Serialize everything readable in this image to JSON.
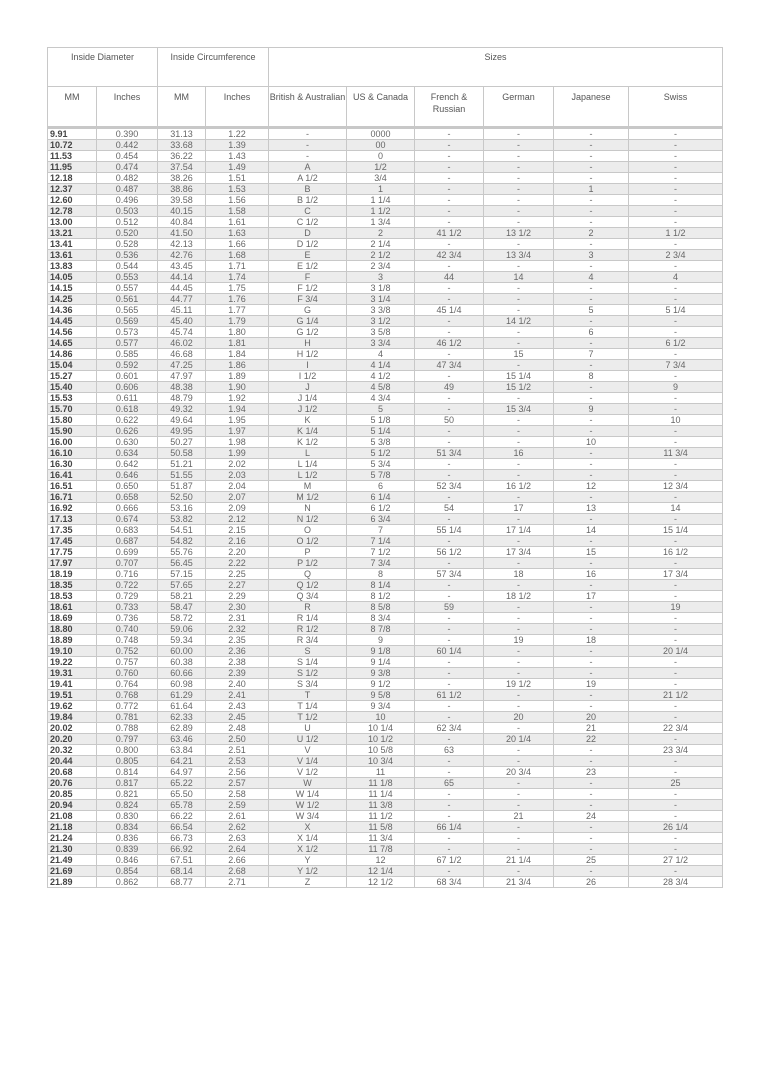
{
  "header": {
    "groups": [
      "Inside Diameter",
      "Inside Circumference",
      "Sizes"
    ],
    "columns": [
      "MM",
      "Inches",
      "MM",
      "Inches",
      "British & Australian",
      "US & Canada",
      "French & Russian",
      "German",
      "Japanese",
      "Swiss"
    ]
  },
  "rows": [
    [
      "9.91",
      "0.390",
      "31.13",
      "1.22",
      "-",
      "0000",
      "-",
      "-",
      "-",
      "-"
    ],
    [
      "10.72",
      "0.442",
      "33.68",
      "1.39",
      "-",
      "00",
      "-",
      "-",
      "-",
      "-"
    ],
    [
      "11.53",
      "0.454",
      "36.22",
      "1.43",
      "-",
      "0",
      "-",
      "-",
      "-",
      "-"
    ],
    [
      "11.95",
      "0.474",
      "37.54",
      "1.49",
      "A",
      "1/2",
      "-",
      "-",
      "-",
      "-"
    ],
    [
      "12.18",
      "0.482",
      "38.26",
      "1.51",
      "A 1/2",
      "3/4",
      "-",
      "-",
      "-",
      "-"
    ],
    [
      "12.37",
      "0.487",
      "38.86",
      "1.53",
      "B",
      "1",
      "-",
      "-",
      "1",
      "-"
    ],
    [
      "12.60",
      "0.496",
      "39.58",
      "1.56",
      "B 1/2",
      "1 1/4",
      "-",
      "-",
      "-",
      "-"
    ],
    [
      "12.78",
      "0.503",
      "40.15",
      "1.58",
      "C",
      "1 1/2",
      "-",
      "-",
      "-",
      "-"
    ],
    [
      "13.00",
      "0.512",
      "40.84",
      "1.61",
      "C 1/2",
      "1 3/4",
      "-",
      "-",
      "-",
      "-"
    ],
    [
      "13.21",
      "0.520",
      "41.50",
      "1.63",
      "D",
      "2",
      "41 1/2",
      "13 1/2",
      "2",
      "1 1/2"
    ],
    [
      "13.41",
      "0.528",
      "42.13",
      "1.66",
      "D 1/2",
      "2 1/4",
      "-",
      "-",
      "-",
      "-"
    ],
    [
      "13.61",
      "0.536",
      "42.76",
      "1.68",
      "E",
      "2 1/2",
      "42 3/4",
      "13 3/4",
      "3",
      "2 3/4"
    ],
    [
      "13.83",
      "0.544",
      "43.45",
      "1.71",
      "E 1/2",
      "2 3/4",
      "-",
      "-",
      "-",
      "-"
    ],
    [
      "14.05",
      "0.553",
      "44.14",
      "1.74",
      "F",
      "3",
      "44",
      "14",
      "4",
      "4"
    ],
    [
      "14.15",
      "0.557",
      "44.45",
      "1.75",
      "F 1/2",
      "3 1/8",
      "-",
      "-",
      "-",
      "-"
    ],
    [
      "14.25",
      "0.561",
      "44.77",
      "1.76",
      "F 3/4",
      "3 1/4",
      "-",
      "-",
      "-",
      "-"
    ],
    [
      "14.36",
      "0.565",
      "45.11",
      "1.77",
      "G",
      "3 3/8",
      "45 1/4",
      "-",
      "5",
      "5 1/4"
    ],
    [
      "14.45",
      "0.569",
      "45.40",
      "1.79",
      "G 1/4",
      "3 1/2",
      "-",
      "14 1/2",
      "-",
      "-"
    ],
    [
      "14.56",
      "0.573",
      "45.74",
      "1.80",
      "G 1/2",
      "3 5/8",
      "-",
      "-",
      "6",
      "-"
    ],
    [
      "14.65",
      "0.577",
      "46.02",
      "1.81",
      "H",
      "3 3/4",
      "46 1/2",
      "-",
      "-",
      "6 1/2"
    ],
    [
      "14.86",
      "0.585",
      "46.68",
      "1.84",
      "H 1/2",
      "4",
      "-",
      "15",
      "7",
      "-"
    ],
    [
      "15.04",
      "0.592",
      "47.25",
      "1.86",
      "I",
      "4 1/4",
      "47 3/4",
      "-",
      "-",
      "7 3/4"
    ],
    [
      "15.27",
      "0.601",
      "47.97",
      "1.89",
      "I 1/2",
      "4 1/2",
      "-",
      "15 1/4",
      "8",
      "-"
    ],
    [
      "15.40",
      "0.606",
      "48.38",
      "1.90",
      "J",
      "4 5/8",
      "49",
      "15 1/2",
      "-",
      "9"
    ],
    [
      "15.53",
      "0.611",
      "48.79",
      "1.92",
      "J 1/4",
      "4 3/4",
      "-",
      "-",
      "-",
      "-"
    ],
    [
      "15.70",
      "0.618",
      "49.32",
      "1.94",
      "J 1/2",
      "5",
      "-",
      "15 3/4",
      "9",
      "-"
    ],
    [
      "15.80",
      "0.622",
      "49.64",
      "1.95",
      "K",
      "5 1/8",
      "50",
      "-",
      "-",
      "10"
    ],
    [
      "15.90",
      "0.626",
      "49.95",
      "1.97",
      "K 1/4",
      "5 1/4",
      "-",
      "-",
      "-",
      "-"
    ],
    [
      "16.00",
      "0.630",
      "50.27",
      "1.98",
      "K 1/2",
      "5 3/8",
      "-",
      "-",
      "10",
      "-"
    ],
    [
      "16.10",
      "0.634",
      "50.58",
      "1.99",
      "L",
      "5 1/2",
      "51 3/4",
      "16",
      "-",
      "11 3/4"
    ],
    [
      "16.30",
      "0.642",
      "51.21",
      "2.02",
      "L 1/4",
      "5 3/4",
      "-",
      "-",
      "-",
      "-"
    ],
    [
      "16.41",
      "0.646",
      "51.55",
      "2.03",
      "L 1/2",
      "5 7/8",
      "-",
      "-",
      "-",
      "-"
    ],
    [
      "16.51",
      "0.650",
      "51.87",
      "2.04",
      "M",
      "6",
      "52 3/4",
      "16 1/2",
      "12",
      "12 3/4"
    ],
    [
      "16.71",
      "0.658",
      "52.50",
      "2.07",
      "M 1/2",
      "6 1/4",
      "-",
      "-",
      "-",
      "-"
    ],
    [
      "16.92",
      "0.666",
      "53.16",
      "2.09",
      "N",
      "6 1/2",
      "54",
      "17",
      "13",
      "14"
    ],
    [
      "17.13",
      "0.674",
      "53.82",
      "2.12",
      "N 1/2",
      "6 3/4",
      "-",
      "-",
      "-",
      "-"
    ],
    [
      "17.35",
      "0.683",
      "54.51",
      "2.15",
      "O",
      "7",
      "55 1/4",
      "17 1/4",
      "14",
      "15 1/4"
    ],
    [
      "17.45",
      "0.687",
      "54.82",
      "2.16",
      "O 1/2",
      "7 1/4",
      "-",
      "-",
      "-",
      "-"
    ],
    [
      "17.75",
      "0.699",
      "55.76",
      "2.20",
      "P",
      "7 1/2",
      "56 1/2",
      "17 3/4",
      "15",
      "16 1/2"
    ],
    [
      "17.97",
      "0.707",
      "56.45",
      "2.22",
      "P 1/2",
      "7 3/4",
      "-",
      "-",
      "-",
      "-"
    ],
    [
      "18.19",
      "0.716",
      "57.15",
      "2.25",
      "Q",
      "8",
      "57 3/4",
      "18",
      "16",
      "17 3/4"
    ],
    [
      "18.35",
      "0.722",
      "57.65",
      "2.27",
      "Q 1/2",
      "8 1/4",
      "-",
      "-",
      "-",
      "-"
    ],
    [
      "18.53",
      "0.729",
      "58.21",
      "2.29",
      "Q 3/4",
      "8 1/2",
      "-",
      "18 1/2",
      "17",
      "-"
    ],
    [
      "18.61",
      "0.733",
      "58.47",
      "2.30",
      "R",
      "8 5/8",
      "59",
      "-",
      "-",
      "19"
    ],
    [
      "18.69",
      "0.736",
      "58.72",
      "2.31",
      "R 1/4",
      "8 3/4",
      "-",
      "-",
      "-",
      "-"
    ],
    [
      "18.80",
      "0.740",
      "59.06",
      "2.32",
      "R 1/2",
      "8 7/8",
      "-",
      "-",
      "-",
      "-"
    ],
    [
      "18.89",
      "0.748",
      "59.34",
      "2.35",
      "R 3/4",
      "9",
      "-",
      "19",
      "18",
      "-"
    ],
    [
      "19.10",
      "0.752",
      "60.00",
      "2.36",
      "S",
      "9 1/8",
      "60 1/4",
      "-",
      "-",
      "20 1/4"
    ],
    [
      "19.22",
      "0.757",
      "60.38",
      "2.38",
      "S 1/4",
      "9 1/4",
      "-",
      "-",
      "-",
      "-"
    ],
    [
      "19.31",
      "0.760",
      "60.66",
      "2.39",
      "S 1/2",
      "9 3/8",
      "-",
      "-",
      "-",
      "-"
    ],
    [
      "19.41",
      "0.764",
      "60.98",
      "2.40",
      "S 3/4",
      "9 1/2",
      "-",
      "19 1/2",
      "19",
      "-"
    ],
    [
      "19.51",
      "0.768",
      "61.29",
      "2.41",
      "T",
      "9 5/8",
      "61 1/2",
      "-",
      "-",
      "21 1/2"
    ],
    [
      "19.62",
      "0.772",
      "61.64",
      "2.43",
      "T 1/4",
      "9 3/4",
      "-",
      "-",
      "-",
      "-"
    ],
    [
      "19.84",
      "0.781",
      "62.33",
      "2.45",
      "T 1/2",
      "10",
      "-",
      "20",
      "20",
      "-"
    ],
    [
      "20.02",
      "0.788",
      "62.89",
      "2.48",
      "U",
      "10 1/4",
      "62 3/4",
      "-",
      "21",
      "22 3/4"
    ],
    [
      "20.20",
      "0.797",
      "63.46",
      "2.50",
      "U 1/2",
      "10 1/2",
      "-",
      "20 1/4",
      "22",
      "-"
    ],
    [
      "20.32",
      "0.800",
      "63.84",
      "2.51",
      "V",
      "10 5/8",
      "63",
      "-",
      "-",
      "23 3/4"
    ],
    [
      "20.44",
      "0.805",
      "64.21",
      "2.53",
      "V 1/4",
      "10 3/4",
      "-",
      "-",
      "-",
      "-"
    ],
    [
      "20.68",
      "0.814",
      "64.97",
      "2.56",
      "V 1/2",
      "11",
      "-",
      "20 3/4",
      "23",
      "-"
    ],
    [
      "20.76",
      "0.817",
      "65.22",
      "2.57",
      "W",
      "11 1/8",
      "65",
      "-",
      "-",
      "25"
    ],
    [
      "20.85",
      "0.821",
      "65.50",
      "2.58",
      "W 1/4",
      "11 1/4",
      "-",
      "-",
      "-",
      "-"
    ],
    [
      "20.94",
      "0.824",
      "65.78",
      "2.59",
      "W 1/2",
      "11 3/8",
      "-",
      "-",
      "-",
      "-"
    ],
    [
      "21.08",
      "0.830",
      "66.22",
      "2.61",
      "W 3/4",
      "11 1/2",
      "-",
      "21",
      "24",
      "-"
    ],
    [
      "21.18",
      "0.834",
      "66.54",
      "2.62",
      "X",
      "11 5/8",
      "66 1/4",
      "-",
      "-",
      "26 1/4"
    ],
    [
      "21.24",
      "0.836",
      "66.73",
      "2.63",
      "X 1/4",
      "11 3/4",
      "-",
      "-",
      "-",
      "-"
    ],
    [
      "21.30",
      "0.839",
      "66.92",
      "2.64",
      "X 1/2",
      "11 7/8",
      "-",
      "-",
      "-",
      "-"
    ],
    [
      "21.49",
      "0.846",
      "67.51",
      "2.66",
      "Y",
      "12",
      "67 1/2",
      "21 1/4",
      "25",
      "27 1/2"
    ],
    [
      "21.69",
      "0.854",
      "68.14",
      "2.68",
      "Y 1/2",
      "12 1/4",
      "-",
      "-",
      "-",
      "-"
    ],
    [
      "21.89",
      "0.862",
      "68.77",
      "2.71",
      "Z",
      "12 1/2",
      "68 3/4",
      "21 3/4",
      "26",
      "28 3/4"
    ]
  ]
}
